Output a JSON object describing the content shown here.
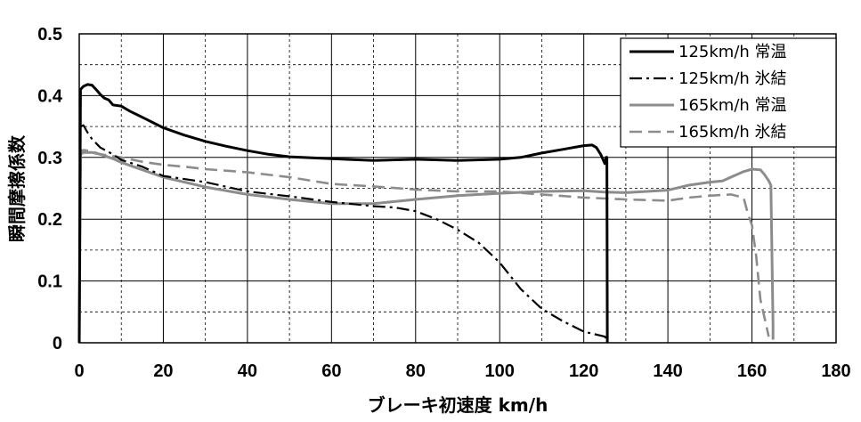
{
  "chart_data": {
    "type": "line",
    "xlabel": "ブレーキ初速度 km/h",
    "ylabel": "瞬間摩擦係数",
    "xlim": [
      0,
      180
    ],
    "ylim": [
      0,
      0.5
    ],
    "x_ticks": [
      "0",
      "20",
      "40",
      "60",
      "80",
      "100",
      "120",
      "140",
      "160",
      "180"
    ],
    "y_ticks": [
      "0",
      "0.1",
      "0.2",
      "0.3",
      "0.4",
      "0.5"
    ],
    "x_minor_grid_step": 10,
    "y_minor_grid_step": 0.05,
    "grid": true,
    "legend_position": "top-right",
    "series": [
      {
        "name": "125km/h 常温",
        "color": "#000000",
        "style": "solid",
        "points": [
          [
            0,
            0
          ],
          [
            0.3,
            0.41
          ],
          [
            1,
            0.415
          ],
          [
            2,
            0.418
          ],
          [
            3,
            0.417
          ],
          [
            4,
            0.41
          ],
          [
            5,
            0.402
          ],
          [
            6,
            0.396
          ],
          [
            7,
            0.393
          ],
          [
            8,
            0.385
          ],
          [
            10,
            0.383
          ],
          [
            12,
            0.375
          ],
          [
            15,
            0.365
          ],
          [
            20,
            0.348
          ],
          [
            25,
            0.336
          ],
          [
            30,
            0.326
          ],
          [
            35,
            0.318
          ],
          [
            40,
            0.311
          ],
          [
            45,
            0.305
          ],
          [
            50,
            0.301
          ],
          [
            60,
            0.298
          ],
          [
            70,
            0.295
          ],
          [
            80,
            0.297
          ],
          [
            90,
            0.295
          ],
          [
            100,
            0.297
          ],
          [
            105,
            0.3
          ],
          [
            110,
            0.307
          ],
          [
            115,
            0.313
          ],
          [
            120,
            0.319
          ],
          [
            122,
            0.32
          ],
          [
            123,
            0.316
          ],
          [
            124,
            0.305
          ],
          [
            125,
            0.29
          ],
          [
            125.3,
            0.3
          ],
          [
            125.5,
            0.3
          ],
          [
            125.6,
            0
          ]
        ]
      },
      {
        "name": "125km/h 氷結",
        "color": "#000000",
        "style": "dash-dot",
        "points": [
          [
            0,
            0
          ],
          [
            0.3,
            0.35
          ],
          [
            1,
            0.352
          ],
          [
            2,
            0.34
          ],
          [
            3,
            0.33
          ],
          [
            5,
            0.316
          ],
          [
            8,
            0.305
          ],
          [
            10,
            0.296
          ],
          [
            15,
            0.285
          ],
          [
            20,
            0.27
          ],
          [
            30,
            0.26
          ],
          [
            40,
            0.245
          ],
          [
            50,
            0.237
          ],
          [
            60,
            0.228
          ],
          [
            70,
            0.221
          ],
          [
            75,
            0.219
          ],
          [
            80,
            0.213
          ],
          [
            85,
            0.2
          ],
          [
            90,
            0.183
          ],
          [
            95,
            0.162
          ],
          [
            100,
            0.13
          ],
          [
            105,
            0.087
          ],
          [
            110,
            0.055
          ],
          [
            115,
            0.035
          ],
          [
            120,
            0.018
          ],
          [
            125,
            0.01
          ],
          [
            125.5,
            0.005
          ]
        ]
      },
      {
        "name": "165km/h 常温",
        "color": "#8c8c8c",
        "style": "solid",
        "points": [
          [
            0,
            0
          ],
          [
            0.3,
            0.305
          ],
          [
            1,
            0.308
          ],
          [
            3,
            0.308
          ],
          [
            5,
            0.305
          ],
          [
            8,
            0.298
          ],
          [
            10,
            0.292
          ],
          [
            15,
            0.28
          ],
          [
            20,
            0.268
          ],
          [
            30,
            0.252
          ],
          [
            40,
            0.24
          ],
          [
            50,
            0.232
          ],
          [
            60,
            0.225
          ],
          [
            70,
            0.225
          ],
          [
            80,
            0.232
          ],
          [
            90,
            0.238
          ],
          [
            100,
            0.242
          ],
          [
            110,
            0.245
          ],
          [
            120,
            0.246
          ],
          [
            125,
            0.244
          ],
          [
            130,
            0.243
          ],
          [
            140,
            0.247
          ],
          [
            145,
            0.255
          ],
          [
            150,
            0.26
          ],
          [
            153,
            0.262
          ],
          [
            155,
            0.268
          ],
          [
            158,
            0.277
          ],
          [
            160,
            0.281
          ],
          [
            162,
            0.28
          ],
          [
            163,
            0.272
          ],
          [
            164,
            0.262
          ],
          [
            164.5,
            0.255
          ],
          [
            165,
            0.03
          ],
          [
            165,
            0.005
          ]
        ]
      },
      {
        "name": "165km/h 氷結",
        "color": "#8c8c8c",
        "style": "dash",
        "points": [
          [
            0,
            0
          ],
          [
            0.3,
            0.31
          ],
          [
            1,
            0.312
          ],
          [
            3,
            0.31
          ],
          [
            5,
            0.305
          ],
          [
            10,
            0.3
          ],
          [
            15,
            0.293
          ],
          [
            20,
            0.288
          ],
          [
            25,
            0.285
          ],
          [
            30,
            0.281
          ],
          [
            40,
            0.276
          ],
          [
            50,
            0.268
          ],
          [
            60,
            0.257
          ],
          [
            70,
            0.253
          ],
          [
            80,
            0.248
          ],
          [
            90,
            0.245
          ],
          [
            100,
            0.245
          ],
          [
            110,
            0.24
          ],
          [
            120,
            0.235
          ],
          [
            130,
            0.232
          ],
          [
            140,
            0.23
          ],
          [
            145,
            0.235
          ],
          [
            150,
            0.238
          ],
          [
            155,
            0.24
          ],
          [
            158,
            0.235
          ],
          [
            159,
            0.21
          ],
          [
            160,
            0.19
          ],
          [
            161,
            0.14
          ],
          [
            162,
            0.07
          ],
          [
            163,
            0.04
          ],
          [
            164,
            0.01
          ]
        ]
      }
    ]
  }
}
